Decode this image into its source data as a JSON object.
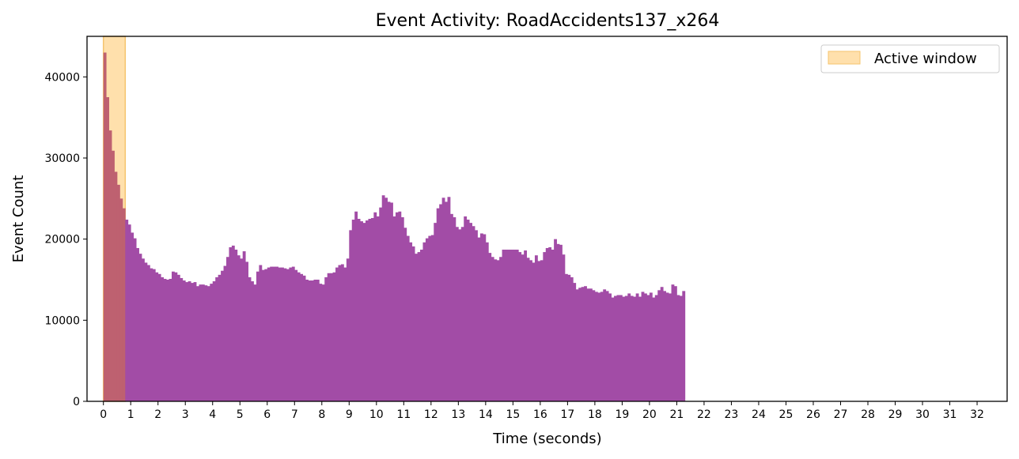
{
  "chart_data": {
    "type": "bar",
    "title": "Event Activity: RoadAccidents137_x264",
    "xlabel": "Time (seconds)",
    "ylabel": "Event Count",
    "bin_width_seconds": 0.1,
    "xlim": [
      -0.6,
      33.1
    ],
    "ylim": [
      0,
      45000
    ],
    "x_ticks": [
      0,
      1,
      2,
      3,
      4,
      5,
      6,
      7,
      8,
      9,
      10,
      11,
      12,
      13,
      14,
      15,
      16,
      17,
      18,
      19,
      20,
      21,
      22,
      23,
      24,
      25,
      26,
      27,
      28,
      29,
      30,
      31,
      32
    ],
    "y_ticks": [
      0,
      10000,
      20000,
      30000,
      40000
    ],
    "grid": false,
    "legend_position": "top-right",
    "bar_color": "#a24ca6",
    "active_window": {
      "label": "Active window",
      "start": 0,
      "end": 0.8,
      "color": "#ffe0ac",
      "edge_color": "#f5c46e"
    },
    "values": [
      43000,
      37500,
      33400,
      30900,
      28300,
      26700,
      25000,
      23800,
      22400,
      21800,
      20800,
      20100,
      18900,
      18200,
      17600,
      17100,
      16800,
      16400,
      16300,
      15900,
      15700,
      15300,
      15100,
      15000,
      15100,
      16000,
      15900,
      15600,
      15200,
      14900,
      14700,
      14800,
      14600,
      14700,
      14200,
      14400,
      14400,
      14300,
      14200,
      14500,
      14800,
      15300,
      15600,
      16100,
      16700,
      17800,
      19000,
      19200,
      18700,
      18000,
      17600,
      18500,
      17200,
      15300,
      14800,
      14400,
      16000,
      16800,
      16200,
      16300,
      16500,
      16600,
      16600,
      16600,
      16500,
      16500,
      16400,
      16300,
      16500,
      16600,
      16200,
      15900,
      15700,
      15500,
      15000,
      14900,
      14900,
      15000,
      15000,
      14500,
      14400,
      15300,
      15800,
      15800,
      15900,
      16500,
      16800,
      16900,
      16500,
      17600,
      21100,
      22400,
      23400,
      22500,
      22200,
      22000,
      22300,
      22500,
      22600,
      23300,
      22800,
      23900,
      25400,
      25100,
      24600,
      24500,
      22800,
      23300,
      23400,
      22700,
      21400,
      20400,
      19600,
      19100,
      18200,
      18400,
      18700,
      19600,
      20100,
      20400,
      20500,
      22000,
      23800,
      24300,
      25100,
      24600,
      25200,
      23100,
      22700,
      21500,
      21200,
      21500,
      22800,
      22400,
      22000,
      21600,
      21100,
      20200,
      20700,
      20600,
      19600,
      18300,
      17800,
      17500,
      17400,
      17800,
      18700,
      18700,
      18700,
      18700,
      18700,
      18700,
      18400,
      18100,
      18600,
      17700,
      17400,
      17100,
      18000,
      17300,
      17400,
      18400,
      18900,
      19000,
      18700,
      20000,
      19400,
      19300,
      18100,
      15700,
      15600,
      15300,
      14600,
      13800,
      14000,
      14100,
      14200,
      13900,
      13900,
      13700,
      13500,
      13400,
      13500,
      13800,
      13600,
      13300,
      12800,
      13000,
      13100,
      13100,
      12900,
      13000,
      13300,
      13000,
      12900,
      13300,
      12900,
      13500,
      13300,
      13100,
      13400,
      12800,
      13100,
      13700,
      14100,
      13600,
      13400,
      13300,
      14400,
      14200,
      13100,
      13000,
      13600
    ]
  }
}
